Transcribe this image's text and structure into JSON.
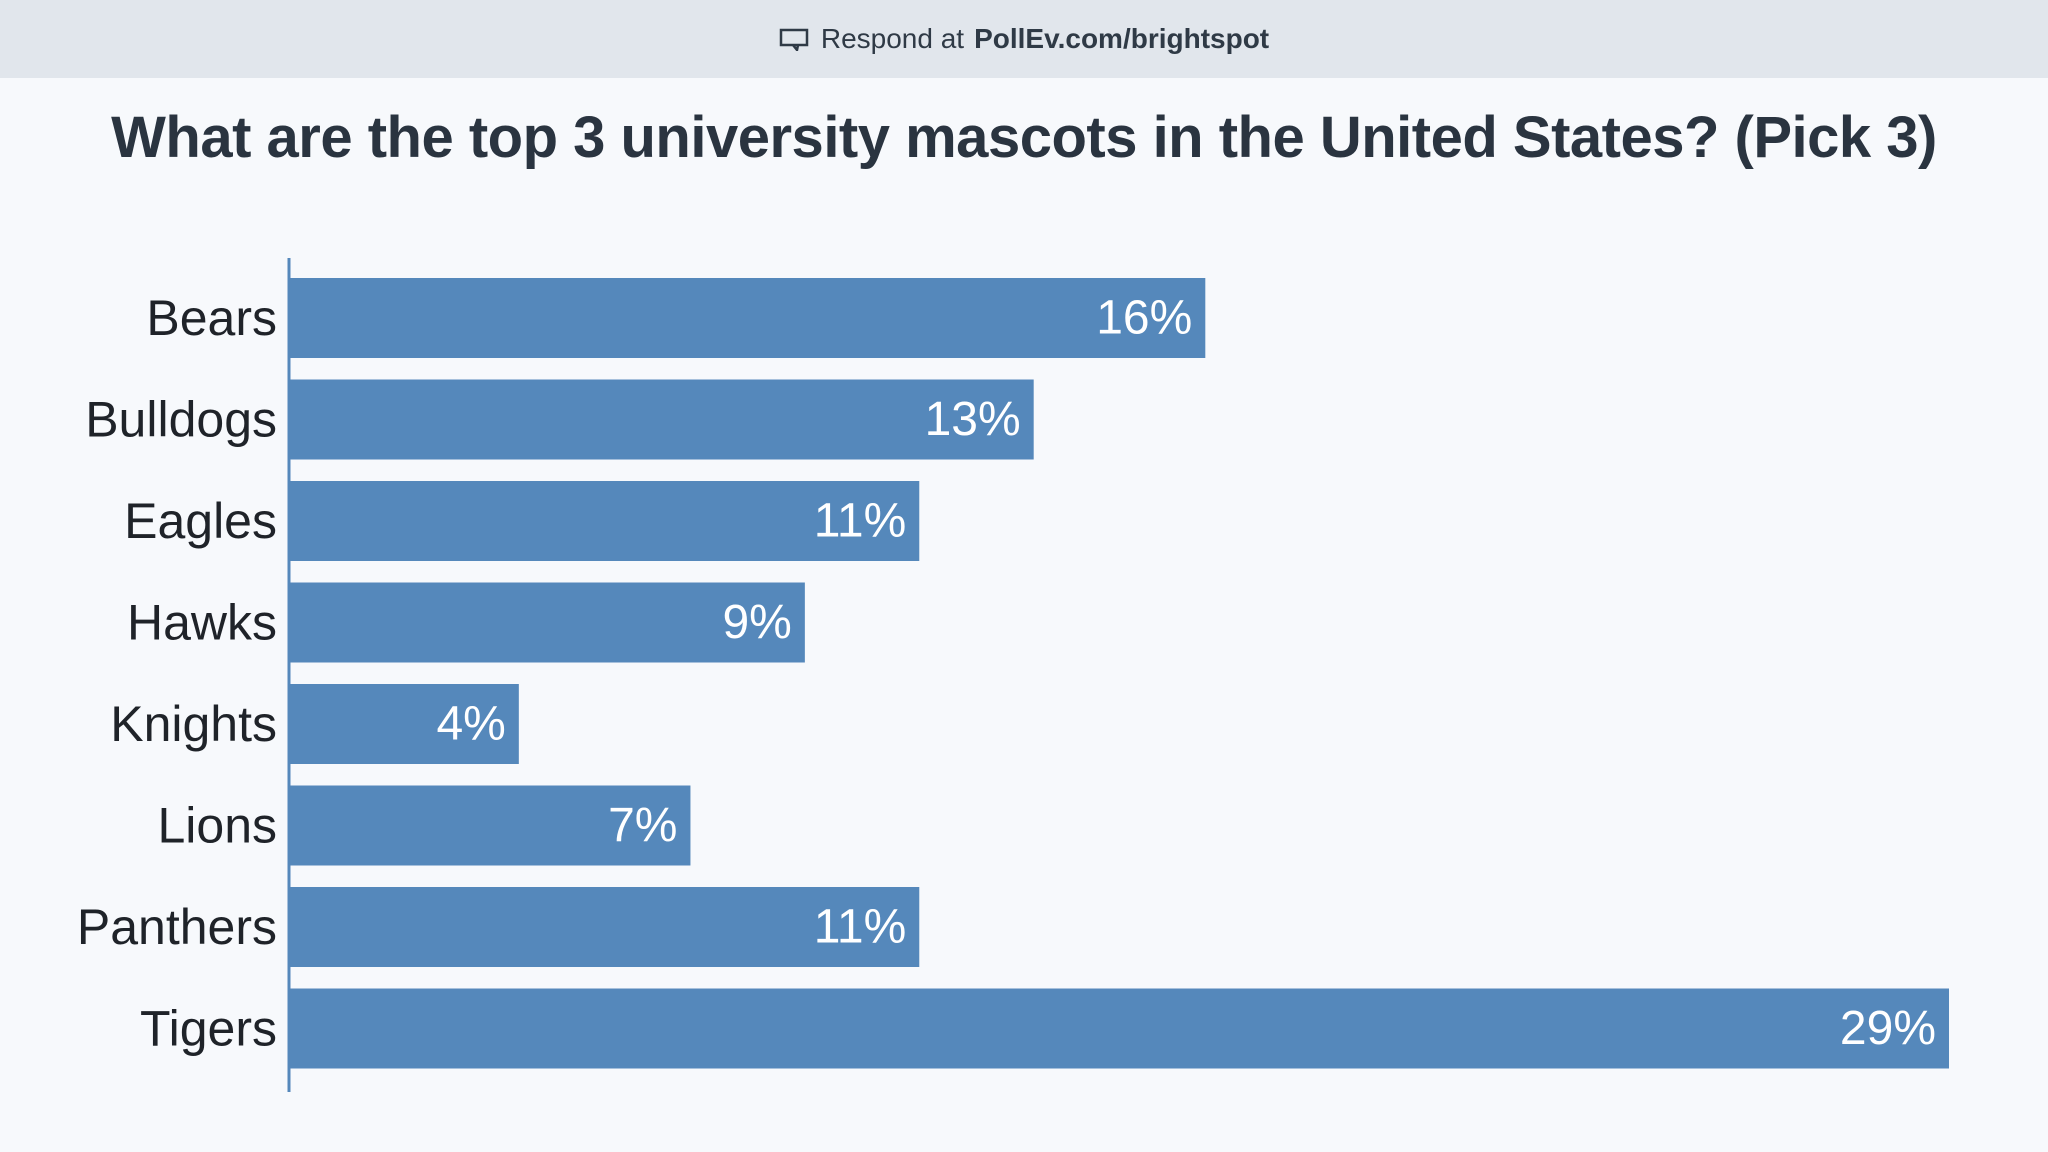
{
  "header": {
    "respond_prefix": "Respond at",
    "respond_url": "PollEv.com/brightspot",
    "icon": "presentation-screen-icon"
  },
  "colors": {
    "bar": "#5588bb",
    "axis": "#5588bb",
    "topbar": "#e1e6ec",
    "background": "#f7f9fc"
  },
  "chart_data": {
    "type": "bar",
    "orientation": "horizontal",
    "title": "What are the top 3 university mascots in the United States? (Pick 3)",
    "categories": [
      "Bears",
      "Bulldogs",
      "Eagles",
      "Hawks",
      "Knights",
      "Lions",
      "Panthers",
      "Tigers"
    ],
    "values": [
      16,
      13,
      11,
      9,
      4,
      7,
      11,
      29
    ],
    "value_labels": [
      "16%",
      "13%",
      "11%",
      "9%",
      "4%",
      "7%",
      "11%",
      "29%"
    ],
    "xlim": [
      0,
      29
    ],
    "unit": "%",
    "xlabel": "",
    "ylabel": "",
    "grid": false
  }
}
